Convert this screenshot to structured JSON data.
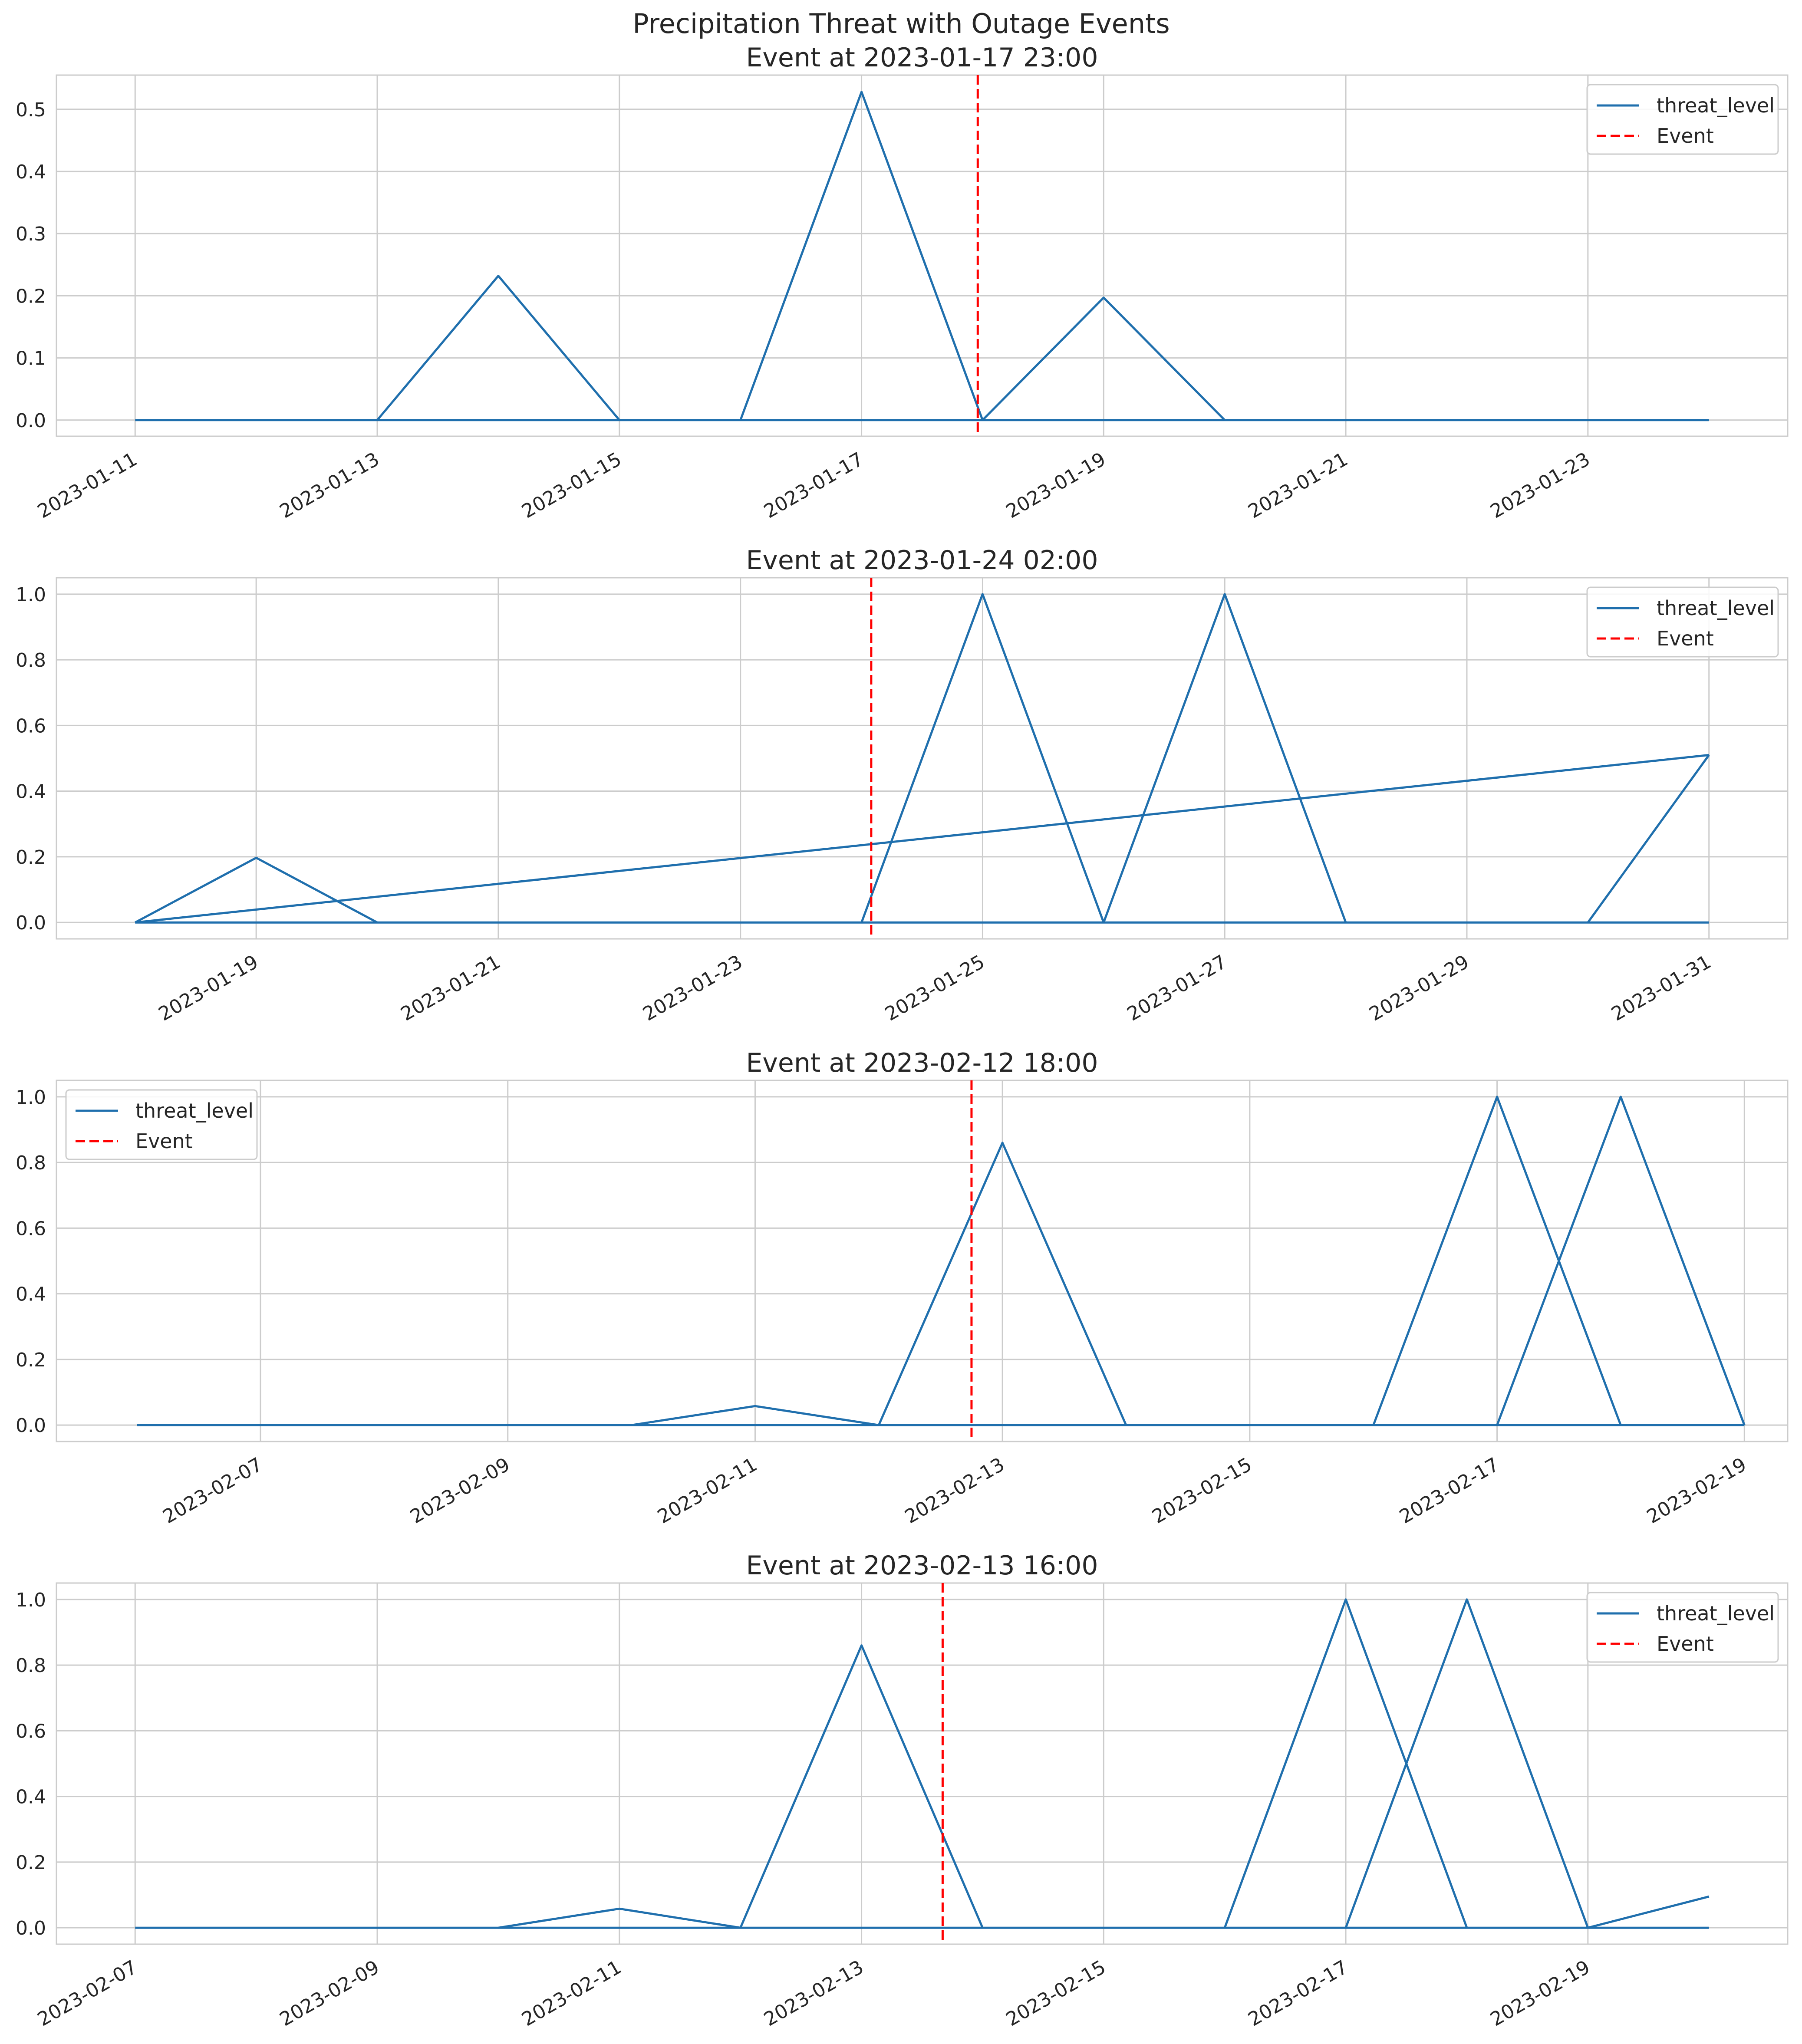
{
  "suptitle": "Precipitation Threat with Outage Events",
  "colors": {
    "line": "#1f6fad",
    "event": "#ff0000",
    "grid": "#cccccc",
    "spine": "#cccccc",
    "text": "#262626"
  },
  "chart_data": [
    {
      "type": "line",
      "title": "Event at 2023-01-17 23:00",
      "legend": {
        "position": "top-right",
        "line_label": "threat_level",
        "event_label": "Event"
      },
      "x_start_date": "2023-01-11",
      "xlim": [
        -0.65,
        13.65
      ],
      "ylim": [
        -0.026,
        0.555
      ],
      "y_ticks": [
        0.0,
        0.1,
        0.2,
        0.3,
        0.4,
        0.5
      ],
      "y_tick_labels": [
        "0.0",
        "0.1",
        "0.2",
        "0.3",
        "0.4",
        "0.5"
      ],
      "x_ticks": [
        0,
        2,
        4,
        6,
        8,
        10,
        12
      ],
      "x_tick_labels": [
        "2023-01-11",
        "2023-01-13",
        "2023-01-15",
        "2023-01-17",
        "2023-01-19",
        "2023-01-21",
        "2023-01-23"
      ],
      "event_x": 6.96,
      "series": [
        {
          "name": "threat_level",
          "x": [
            0,
            13
          ],
          "y": [
            0,
            0
          ]
        },
        {
          "name": "threat_level",
          "x": [
            2,
            3,
            4
          ],
          "y": [
            0,
            0.232,
            0
          ]
        },
        {
          "name": "threat_level",
          "x": [
            5,
            6,
            7
          ],
          "y": [
            0,
            0.528,
            0
          ]
        },
        {
          "name": "threat_level",
          "x": [
            7,
            8,
            9
          ],
          "y": [
            0,
            0.197,
            0
          ]
        }
      ]
    },
    {
      "type": "line",
      "title": "Event at 2023-01-24 02:00",
      "legend": {
        "position": "top-right",
        "line_label": "threat_level",
        "event_label": "Event"
      },
      "x_start_date": "2023-01-18",
      "xlim": [
        -0.65,
        13.65
      ],
      "ylim": [
        -0.05,
        1.05
      ],
      "y_ticks": [
        0.0,
        0.2,
        0.4,
        0.6,
        0.8,
        1.0
      ],
      "y_tick_labels": [
        "0.0",
        "0.2",
        "0.4",
        "0.6",
        "0.8",
        "1.0"
      ],
      "x_ticks": [
        1,
        3,
        5,
        7,
        9,
        11,
        13
      ],
      "x_tick_labels": [
        "2023-01-19",
        "2023-01-21",
        "2023-01-23",
        "2023-01-25",
        "2023-01-27",
        "2023-01-29",
        "2023-01-31"
      ],
      "event_x": 6.08,
      "series": [
        {
          "name": "threat_level",
          "x": [
            0,
            13
          ],
          "y": [
            0,
            0
          ]
        },
        {
          "name": "threat_level",
          "x": [
            0,
            1,
            2
          ],
          "y": [
            0,
            0.197,
            0
          ]
        },
        {
          "name": "threat_level",
          "x": [
            0,
            13
          ],
          "y": [
            0,
            0.51
          ]
        },
        {
          "name": "threat_level",
          "x": [
            6,
            7,
            8
          ],
          "y": [
            0,
            1.0,
            0
          ]
        },
        {
          "name": "threat_level",
          "x": [
            8,
            9,
            10
          ],
          "y": [
            0,
            1.0,
            0
          ]
        },
        {
          "name": "threat_level",
          "x": [
            12,
            13
          ],
          "y": [
            0,
            0.51
          ]
        }
      ]
    },
    {
      "type": "line",
      "title": "Event at 2023-02-12 18:00",
      "legend": {
        "position": "top-left",
        "line_label": "threat_level",
        "event_label": "Event"
      },
      "x_start_date": "2023-02-06",
      "xlim": [
        -0.65,
        13.35
      ],
      "ylim": [
        -0.05,
        1.05
      ],
      "y_ticks": [
        0.0,
        0.2,
        0.4,
        0.6,
        0.8,
        1.0
      ],
      "y_tick_labels": [
        "0.0",
        "0.2",
        "0.4",
        "0.6",
        "0.8",
        "1.0"
      ],
      "x_ticks": [
        1,
        3,
        5,
        7,
        9,
        11,
        13
      ],
      "x_tick_labels": [
        "2023-02-07",
        "2023-02-09",
        "2023-02-11",
        "2023-02-13",
        "2023-02-15",
        "2023-02-17",
        "2023-02-19"
      ],
      "event_x": 6.75,
      "series": [
        {
          "name": "threat_level",
          "x": [
            0,
            13
          ],
          "y": [
            0,
            0
          ]
        },
        {
          "name": "threat_level",
          "x": [
            4,
            5,
            6
          ],
          "y": [
            0,
            0.058,
            0
          ]
        },
        {
          "name": "threat_level",
          "x": [
            6,
            7,
            8
          ],
          "y": [
            0,
            0.86,
            0
          ]
        },
        {
          "name": "threat_level",
          "x": [
            10,
            11,
            12
          ],
          "y": [
            0,
            1.0,
            0
          ]
        },
        {
          "name": "threat_level",
          "x": [
            11,
            12,
            13
          ],
          "y": [
            0,
            1.0,
            0
          ]
        }
      ]
    },
    {
      "type": "line",
      "title": "Event at 2023-02-13 16:00",
      "legend": {
        "position": "top-right",
        "line_label": "threat_level",
        "event_label": "Event"
      },
      "x_start_date": "2023-02-07",
      "xlim": [
        -0.65,
        13.65
      ],
      "ylim": [
        -0.05,
        1.05
      ],
      "y_ticks": [
        0.0,
        0.2,
        0.4,
        0.6,
        0.8,
        1.0
      ],
      "y_tick_labels": [
        "0.0",
        "0.2",
        "0.4",
        "0.6",
        "0.8",
        "1.0"
      ],
      "x_ticks": [
        0,
        2,
        4,
        6,
        8,
        10,
        12
      ],
      "x_tick_labels": [
        "2023-02-07",
        "2023-02-09",
        "2023-02-11",
        "2023-02-13",
        "2023-02-15",
        "2023-02-17",
        "2023-02-19"
      ],
      "event_x": 6.67,
      "series": [
        {
          "name": "threat_level",
          "x": [
            0,
            13
          ],
          "y": [
            0,
            0
          ]
        },
        {
          "name": "threat_level",
          "x": [
            3,
            4,
            5
          ],
          "y": [
            0,
            0.058,
            0
          ]
        },
        {
          "name": "threat_level",
          "x": [
            5,
            6,
            7
          ],
          "y": [
            0,
            0.86,
            0
          ]
        },
        {
          "name": "threat_level",
          "x": [
            9,
            10,
            11
          ],
          "y": [
            0,
            1.0,
            0
          ]
        },
        {
          "name": "threat_level",
          "x": [
            10,
            11,
            12
          ],
          "y": [
            0,
            1.0,
            0
          ]
        },
        {
          "name": "threat_level",
          "x": [
            12,
            13
          ],
          "y": [
            0,
            0.095
          ]
        }
      ]
    }
  ]
}
